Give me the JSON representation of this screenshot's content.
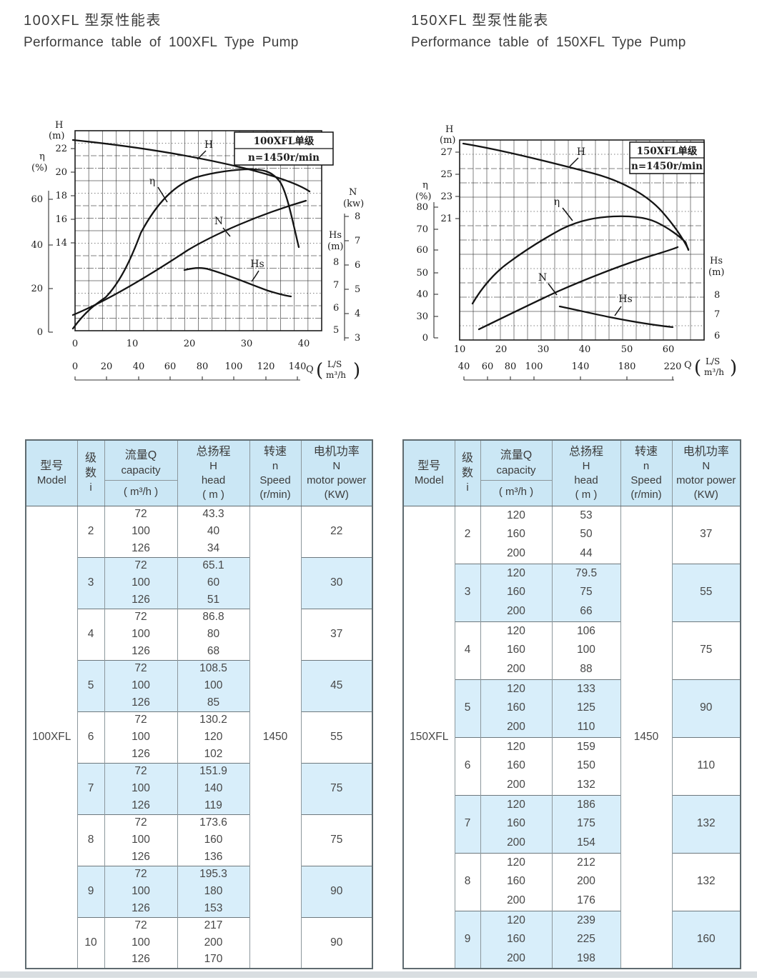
{
  "sections": [
    {
      "title_zh": "100XFL 型泵性能表",
      "title_en": "Performance table of 100XFL Type Pump",
      "chart": {
        "box": [
          "100XFL单级",
          "n=1450r/min"
        ],
        "h_label": [
          "H",
          "(m)"
        ],
        "h_ticks": [
          "22",
          "20",
          "18",
          "16",
          "14"
        ],
        "eta_label": [
          "η",
          "(%)"
        ],
        "eta_ticks": [
          "60",
          "40",
          "20",
          "0"
        ],
        "n_label": [
          "N",
          "(kw)"
        ],
        "n_ticks": [
          "8",
          "7",
          "6",
          "5",
          "4",
          "3"
        ],
        "hs_label": [
          "Hs",
          "(m)"
        ],
        "hs_ticks": [
          "8",
          "7",
          "6",
          "5"
        ],
        "x_ls": [
          "0",
          "10",
          "20",
          "30",
          "40"
        ],
        "x_m3h": [
          "0",
          "20",
          "40",
          "60",
          "80",
          "100",
          "120",
          "140"
        ],
        "q_label": "Q",
        "parens": [
          "(",
          ")"
        ],
        "unit_top": "L/S",
        "unit_bottom": "m³/h",
        "curves": {
          "h": "H",
          "eta": "η",
          "n": "N",
          "hs": "Hs"
        }
      },
      "table": {
        "headers": {
          "model": [
            "型号",
            "Model"
          ],
          "stages": [
            "级",
            "数",
            "i"
          ],
          "capacity": [
            "流量Q",
            "capacity"
          ],
          "capacity_unit": "( m³/h )",
          "head": [
            "总扬程",
            "H",
            "head",
            "( m )"
          ],
          "speed": [
            "转速",
            "n",
            "Speed",
            "(r/min)"
          ],
          "power": [
            "电机功率",
            "N",
            "motor power",
            "(KW)"
          ]
        },
        "model": "100XFL",
        "speed": "1450",
        "groups": [
          {
            "i": "2",
            "q": [
              "72",
              "100",
              "126"
            ],
            "h": [
              "43.3",
              "40",
              "34"
            ],
            "power": "22"
          },
          {
            "i": "3",
            "q": [
              "72",
              "100",
              "126"
            ],
            "h": [
              "65.1",
              "60",
              "51"
            ],
            "power": "30"
          },
          {
            "i": "4",
            "q": [
              "72",
              "100",
              "126"
            ],
            "h": [
              "86.8",
              "80",
              "68"
            ],
            "power": "37"
          },
          {
            "i": "5",
            "q": [
              "72",
              "100",
              "126"
            ],
            "h": [
              "108.5",
              "100",
              "85"
            ],
            "power": "45"
          },
          {
            "i": "6",
            "q": [
              "72",
              "100",
              "126"
            ],
            "h": [
              "130.2",
              "120",
              "102"
            ],
            "power": "55"
          },
          {
            "i": "7",
            "q": [
              "72",
              "100",
              "126"
            ],
            "h": [
              "151.9",
              "140",
              "119"
            ],
            "power": "75"
          },
          {
            "i": "8",
            "q": [
              "72",
              "100",
              "126"
            ],
            "h": [
              "173.6",
              "160",
              "136"
            ],
            "power": "75"
          },
          {
            "i": "9",
            "q": [
              "72",
              "100",
              "126"
            ],
            "h": [
              "195.3",
              "180",
              "153"
            ],
            "power": "90"
          },
          {
            "i": "10",
            "q": [
              "72",
              "100",
              "126"
            ],
            "h": [
              "217",
              "200",
              "170"
            ],
            "power": "90"
          }
        ]
      }
    },
    {
      "title_zh": "150XFL 型泵性能表",
      "title_en": "Performance table of 150XFL Type Pump",
      "chart": {
        "box": [
          "150XFL单级",
          "n=1450r/min"
        ],
        "h_label": [
          "H",
          "(m)"
        ],
        "h_ticks": [
          "27",
          "25",
          "23",
          "21"
        ],
        "eta_label": [
          "η",
          "(%)"
        ],
        "eta_ticks": [
          "80",
          "70",
          "60",
          "50",
          "40",
          "30",
          "0"
        ],
        "hs_label": [
          "Hs",
          "(m)"
        ],
        "hs_ticks": [
          "8",
          "7",
          "6"
        ],
        "x_ls": [
          "10",
          "20",
          "30",
          "40",
          "50",
          "60"
        ],
        "x_m3h": [
          "40",
          "60",
          "80",
          "100",
          "140",
          "180",
          "220"
        ],
        "q_label": "Q",
        "parens": [
          "(",
          ")"
        ],
        "unit_top": "L/S",
        "unit_bottom": "m³/h",
        "curves": {
          "h": "H",
          "eta": "η",
          "n": "N",
          "hs": "Hs"
        }
      },
      "table": {
        "headers": {
          "model": [
            "型号",
            "Model"
          ],
          "stages": [
            "级",
            "数",
            "i"
          ],
          "capacity": [
            "流量Q",
            "capacity"
          ],
          "capacity_unit": "( m³/h )",
          "head": [
            "总扬程",
            "H",
            "head",
            "( m )"
          ],
          "speed": [
            "转速",
            "n",
            "Speed",
            "(r/min)"
          ],
          "power": [
            "电机功率",
            "N",
            "motor power",
            "(KW)"
          ]
        },
        "model": "150XFL",
        "speed": "1450",
        "groups": [
          {
            "i": "2",
            "q": [
              "120",
              "160",
              "200"
            ],
            "h": [
              "53",
              "50",
              "44"
            ],
            "power": "37"
          },
          {
            "i": "3",
            "q": [
              "120",
              "160",
              "200"
            ],
            "h": [
              "79.5",
              "75",
              "66"
            ],
            "power": "55"
          },
          {
            "i": "4",
            "q": [
              "120",
              "160",
              "200"
            ],
            "h": [
              "106",
              "100",
              "88"
            ],
            "power": "75"
          },
          {
            "i": "5",
            "q": [
              "120",
              "160",
              "200"
            ],
            "h": [
              "133",
              "125",
              "110"
            ],
            "power": "90"
          },
          {
            "i": "6",
            "q": [
              "120",
              "160",
              "200"
            ],
            "h": [
              "159",
              "150",
              "132"
            ],
            "power": "110"
          },
          {
            "i": "7",
            "q": [
              "120",
              "160",
              "200"
            ],
            "h": [
              "186",
              "175",
              "154"
            ],
            "power": "132"
          },
          {
            "i": "8",
            "q": [
              "120",
              "160",
              "200"
            ],
            "h": [
              "212",
              "200",
              "176"
            ],
            "power": "132"
          },
          {
            "i": "9",
            "q": [
              "120",
              "160",
              "200"
            ],
            "h": [
              "239",
              "225",
              "198"
            ],
            "power": "160"
          }
        ]
      }
    }
  ],
  "chart_data": [
    {
      "type": "line",
      "title": "100XFL单级 n=1450r/min",
      "xlabel": "Q",
      "x_units": [
        "L/S",
        "m³/h"
      ],
      "x_range_ls": [
        0,
        45
      ],
      "axis_ranges": {
        "H_m": [
          14,
          23
        ],
        "eta_pct": [
          0,
          60
        ],
        "N_kw": [
          3,
          8
        ],
        "Hs_m": [
          5,
          8
        ]
      },
      "series": [
        {
          "name": "H",
          "unit": "m",
          "x_ls": [
            0,
            10,
            20,
            28,
            35,
            40,
            43
          ],
          "values": [
            23,
            22.2,
            21,
            20,
            18.7,
            17.8,
            17.2
          ]
        },
        {
          "name": "η",
          "unit": "%",
          "x_ls": [
            0,
            5,
            10,
            15,
            20,
            27,
            31,
            35,
            39
          ],
          "values": [
            0,
            18,
            33,
            44,
            52,
            58,
            60,
            59,
            47
          ]
        },
        {
          "name": "N",
          "unit": "kw",
          "x_ls": [
            0,
            10,
            20,
            30,
            38,
            43
          ],
          "values": [
            3.1,
            4.2,
            5.4,
            6.6,
            7.4,
            7.7
          ]
        },
        {
          "name": "Hs",
          "unit": "m",
          "x_ls": [
            19,
            25,
            30,
            35,
            38
          ],
          "values": [
            7.6,
            7.5,
            7.2,
            6.9,
            6.6
          ]
        }
      ],
      "grid": true,
      "legend": "curve labels on plot"
    },
    {
      "type": "line",
      "title": "150XFL单级 n=1450r/min",
      "xlabel": "Q",
      "x_units": [
        "L/S",
        "m³/h"
      ],
      "x_range_ls": [
        10,
        62
      ],
      "axis_ranges": {
        "H_m": [
          21,
          28
        ],
        "eta_pct": [
          0,
          80
        ],
        "Hs_m": [
          6,
          8
        ]
      },
      "series": [
        {
          "name": "H",
          "unit": "m",
          "x_ls": [
            11,
            20,
            30,
            40,
            48,
            55,
            61
          ],
          "values": [
            28,
            27.2,
            26,
            25,
            23.5,
            22.3,
            21
          ]
        },
        {
          "name": "η",
          "unit": "%",
          "x_ls": [
            12,
            20,
            30,
            40,
            45,
            52,
            60,
            62
          ],
          "values": [
            36,
            50,
            62,
            72,
            75,
            74,
            66,
            62
          ]
        },
        {
          "name": "N",
          "unit": "(unlabeled axis, read vs η scale)",
          "x_ls": [
            14,
            30,
            45,
            57
          ],
          "values": [
            31,
            45,
            55,
            62
          ]
        },
        {
          "name": "Hs",
          "unit": "m",
          "x_ls": [
            32,
            40,
            50,
            57
          ],
          "values": [
            7.5,
            7.1,
            6.7,
            6.5
          ]
        }
      ],
      "grid": true,
      "legend": "curve labels on plot"
    }
  ]
}
